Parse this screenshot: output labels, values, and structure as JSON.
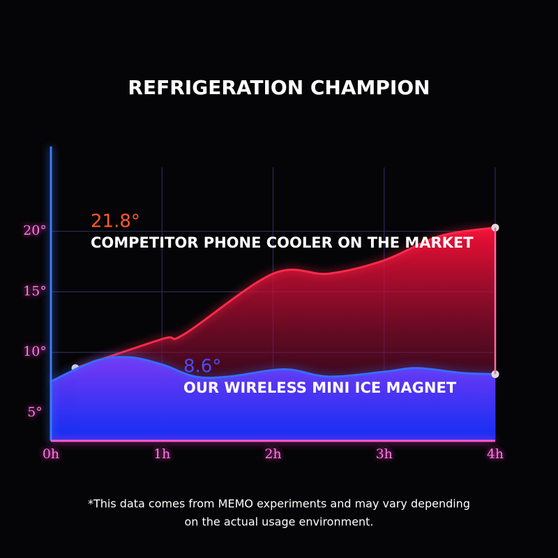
{
  "chart_data": {
    "type": "area",
    "title": "REFRIGERATION CHAMPION",
    "xlim": [
      0,
      4
    ],
    "ylim": [
      2.7,
      27
    ],
    "xticks": [
      {
        "value": 0,
        "label": "0h"
      },
      {
        "value": 1,
        "label": "1h"
      },
      {
        "value": 2,
        "label": "2h"
      },
      {
        "value": 3,
        "label": "3h"
      },
      {
        "value": 4,
        "label": "4h"
      }
    ],
    "yticks": [
      {
        "value": 5,
        "label": "5°"
      },
      {
        "value": 10,
        "label": "10°"
      },
      {
        "value": 15,
        "label": "15°"
      },
      {
        "value": 20,
        "label": "20°"
      }
    ],
    "grid": true,
    "series": [
      {
        "name": "COMPETITOR PHONE COOLER ON THE MARKET",
        "color": "#ff2a4a",
        "x": [
          0.22,
          1,
          1.2,
          2,
          2.5,
          3,
          3.5,
          4
        ],
        "values": [
          8.7,
          11.1,
          11.5,
          16.5,
          16.5,
          17.6,
          19.6,
          20.3
        ]
      },
      {
        "name": "OUR WIRELESS MINI ICE MAGNET",
        "color": "#3a6bff",
        "x": [
          0,
          0.4,
          0.7,
          1,
          1.3,
          1.6,
          2.1,
          2.5,
          3,
          3.3,
          3.7,
          4
        ],
        "values": [
          7.6,
          9.3,
          9.6,
          9.0,
          8.0,
          8.0,
          8.6,
          8.0,
          8.4,
          8.7,
          8.3,
          8.2
        ]
      }
    ],
    "annotations": [
      "21.8°",
      "8.6°"
    ],
    "footnote": [
      "*This data comes from MEMO experiments and may vary depending",
      "on the actual usage environment."
    ]
  }
}
